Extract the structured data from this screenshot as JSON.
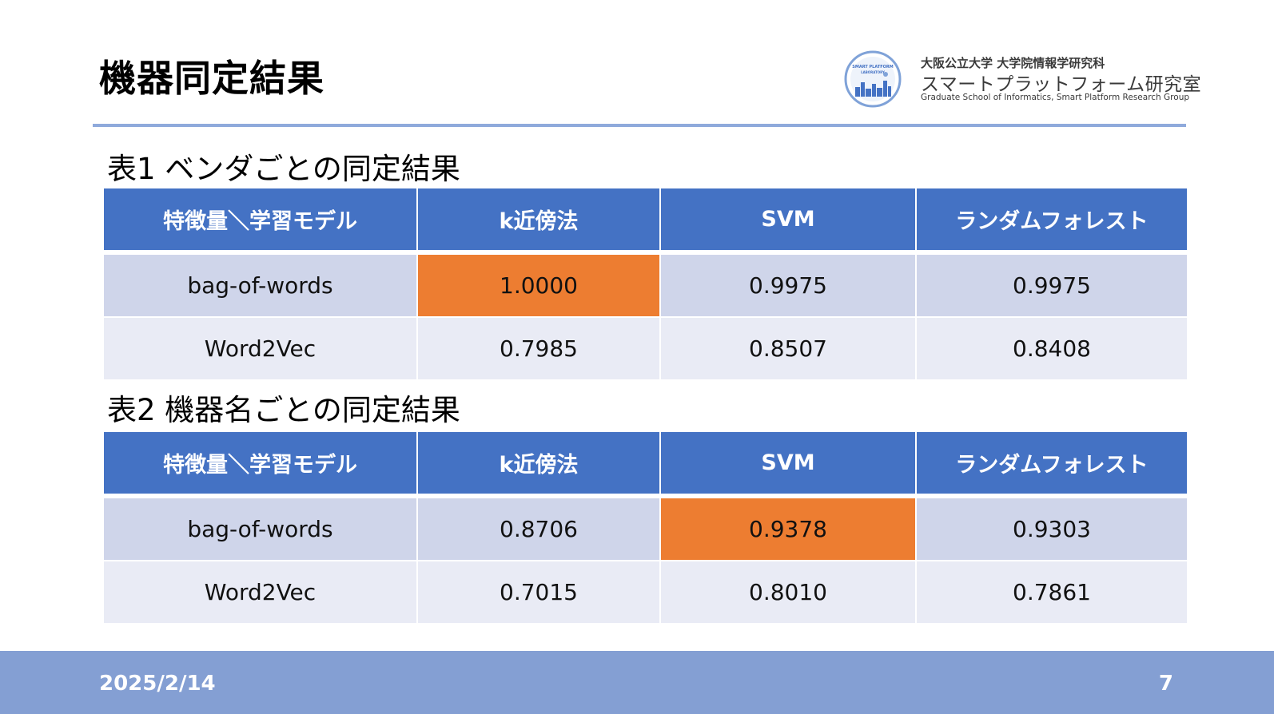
{
  "slide": {
    "title": "機器同定結果",
    "date": "2025/2/14",
    "page_number": "7"
  },
  "lab": {
    "logo_text_top": "SMART PLATFORM",
    "logo_text_mid": "LABORATORY",
    "line1": "大阪公立大学 大学院情報学研究科",
    "line2": "スマートプラットフォーム研究室",
    "line3": "Graduate School of Informatics, Smart Platform Research Group"
  },
  "colors": {
    "header": "#4472c4",
    "row_odd": "#cfd5ea",
    "row_even": "#e9ebf5",
    "highlight": "#ed7d31",
    "rule": "#8faadc",
    "footer": "#849fd3"
  },
  "table1": {
    "caption": "表1 ベンダごとの同定結果",
    "headers": [
      "特徴量＼学習モデル",
      "k近傍法",
      "SVM",
      "ランダムフォレスト"
    ],
    "rows": [
      {
        "label": "bag-of-words",
        "values": [
          "1.0000",
          "0.9975",
          "0.9975"
        ],
        "highlight_index": 0
      },
      {
        "label": "Word2Vec",
        "values": [
          "0.7985",
          "0.8507",
          "0.8408"
        ],
        "highlight_index": -1
      }
    ]
  },
  "table2": {
    "caption": "表2 機器名ごとの同定結果",
    "headers": [
      "特徴量＼学習モデル",
      "k近傍法",
      "SVM",
      "ランダムフォレスト"
    ],
    "rows": [
      {
        "label": "bag-of-words",
        "values": [
          "0.8706",
          "0.9378",
          "0.9303"
        ],
        "highlight_index": 1
      },
      {
        "label": "Word2Vec",
        "values": [
          "0.7015",
          "0.8010",
          "0.7861"
        ],
        "highlight_index": -1
      }
    ]
  }
}
